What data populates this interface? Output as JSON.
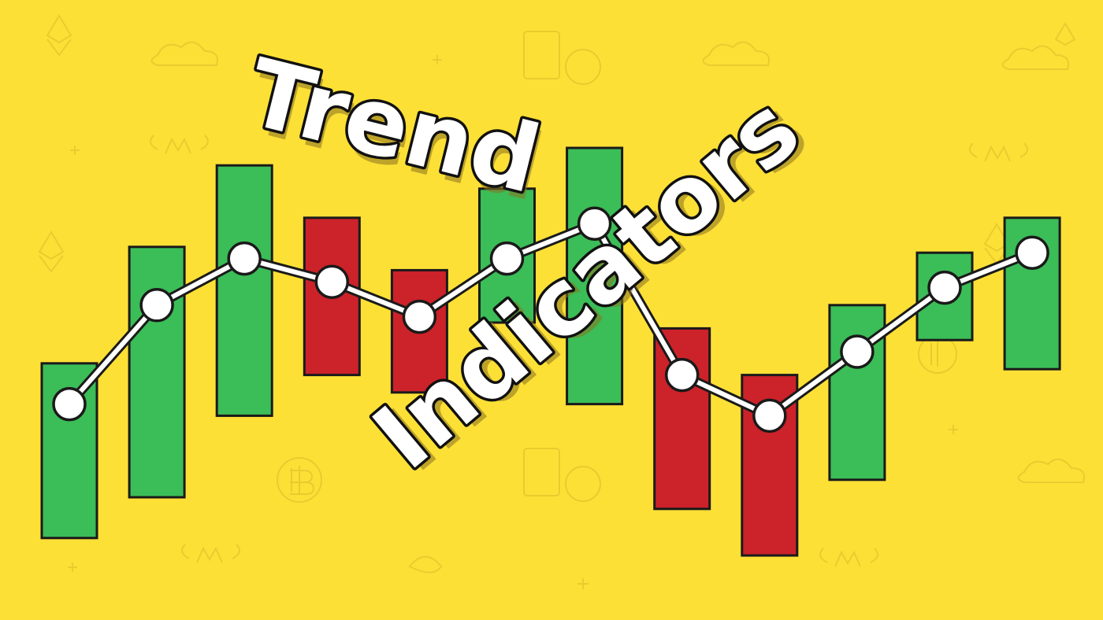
{
  "title": {
    "line1": "Trend",
    "line2": "Indicators"
  },
  "colors": {
    "background": "#fde036",
    "up": "#3bbd57",
    "down": "#cc2229",
    "line": "#ffffff",
    "outline": "#1a1a1a"
  },
  "icons": [
    "bitcoin-icon",
    "ethereum-icon",
    "cloud-icon",
    "winged-coin-icon",
    "sparkle-icon"
  ],
  "candles": [
    {
      "open": 0.13,
      "close": 0.43,
      "dir": "up"
    },
    {
      "open": 0.2,
      "close": 0.63,
      "dir": "up"
    },
    {
      "open": 0.34,
      "close": 0.77,
      "dir": "up"
    },
    {
      "open": 0.68,
      "close": 0.41,
      "dir": "down"
    },
    {
      "open": 0.59,
      "close": 0.38,
      "dir": "down"
    },
    {
      "open": 0.5,
      "close": 0.73,
      "dir": "up"
    },
    {
      "open": 0.36,
      "close": 0.8,
      "dir": "up"
    },
    {
      "open": 0.49,
      "close": 0.18,
      "dir": "down"
    },
    {
      "open": 0.41,
      "close": 0.1,
      "dir": "down"
    },
    {
      "open": 0.23,
      "close": 0.53,
      "dir": "up"
    },
    {
      "open": 0.47,
      "close": 0.62,
      "dir": "up"
    },
    {
      "open": 0.42,
      "close": 0.68,
      "dir": "up"
    }
  ],
  "trend_points": [
    0.36,
    0.53,
    0.61,
    0.57,
    0.51,
    0.61,
    0.67,
    0.41,
    0.34,
    0.45,
    0.56,
    0.62
  ]
}
